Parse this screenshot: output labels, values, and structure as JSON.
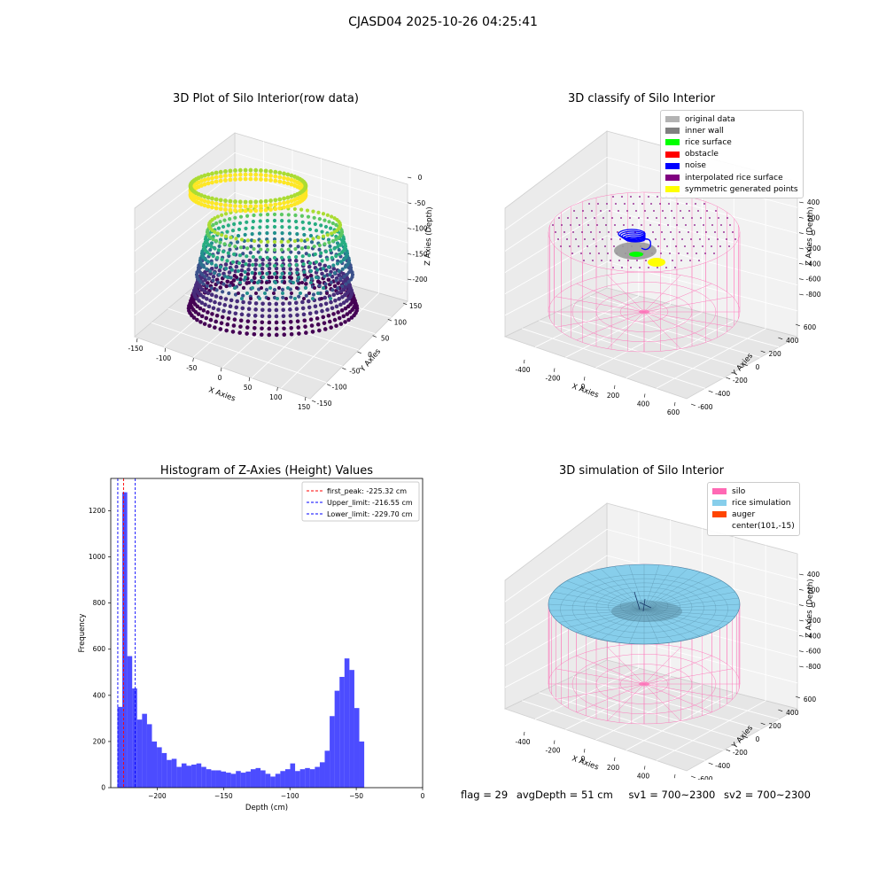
{
  "suptitle": "CJASD04 2025-10-26 04:25:41",
  "panels": {
    "raw": {
      "title": "3D Plot of Silo Interior(row data)",
      "xlabel": "X Axies",
      "ylabel": "Y Axies",
      "zlabel": "Z Axies (Depth)",
      "xticks": [
        "-150",
        "-100",
        "-50",
        "0",
        "50",
        "100",
        "150"
      ],
      "yticks": [
        "-150",
        "-100",
        "-50",
        "0",
        "50",
        "100",
        "150"
      ],
      "zticks": [
        "0",
        "-50",
        "-100",
        "-150",
        "-200"
      ]
    },
    "classify": {
      "title": "3D classify of Silo Interior",
      "xlabel": "X Axies",
      "ylabel": "Y Axies",
      "zlabel": "Z Axies (Depth)",
      "xticks": [
        "-400",
        "-200",
        "0",
        "200",
        "400",
        "600"
      ],
      "yticks": [
        "-600",
        "-400",
        "-200",
        "0",
        "200",
        "400",
        "600"
      ],
      "zticks": [
        "400",
        "200",
        "0",
        "-200",
        "-400",
        "-600",
        "-800"
      ],
      "legend": [
        {
          "label": "original data",
          "color": "#b3b3b3"
        },
        {
          "label": "inner wall",
          "color": "#808080"
        },
        {
          "label": "rice surface",
          "color": "#00ff00"
        },
        {
          "label": "obstacle",
          "color": "#ff0000"
        },
        {
          "label": "noise",
          "color": "#0000ff"
        },
        {
          "label": "interpolated rice surface",
          "color": "#800080"
        },
        {
          "label": "symmetric generated points",
          "color": "#ffff00"
        }
      ]
    },
    "simulation": {
      "title": "3D simulation of Silo Interior",
      "xlabel": "X Axies",
      "ylabel": "Y Axies",
      "zlabel": "Z Axies (Depth)",
      "xticks": [
        "-400",
        "-200",
        "0",
        "200",
        "400",
        "600"
      ],
      "yticks": [
        "-600",
        "-400",
        "-200",
        "0",
        "200",
        "400",
        "600"
      ],
      "zticks": [
        "400",
        "200",
        "0",
        "-200",
        "-400",
        "-600",
        "-800"
      ],
      "legend": [
        {
          "label": "silo",
          "color": "#ff69b4"
        },
        {
          "label": "rice simulation",
          "color": "#87ceeb"
        },
        {
          "label": "auger",
          "color": "#ff4500"
        },
        {
          "label": "center(101,-15)",
          "color": ""
        }
      ]
    }
  },
  "chart_data": {
    "type": "bar",
    "title": "Histogram of Z-Axies (Height) Values",
    "xlabel": "Depth (cm)",
    "ylabel": "Frequency",
    "xlim": [
      -235,
      0
    ],
    "ylim": [
      0,
      1340
    ],
    "xticks": [
      -200,
      -150,
      -100,
      -50,
      0
    ],
    "yticks": [
      0,
      200,
      400,
      600,
      800,
      1000,
      1200
    ],
    "bar_color": "#0000ff",
    "bin_start": -230,
    "bin_width": 3.72,
    "values": [
      350,
      1280,
      570,
      430,
      295,
      320,
      275,
      200,
      175,
      150,
      120,
      125,
      90,
      105,
      95,
      100,
      105,
      90,
      80,
      75,
      75,
      70,
      65,
      60,
      72,
      65,
      70,
      80,
      85,
      75,
      60,
      48,
      60,
      72,
      80,
      105,
      72,
      80,
      85,
      80,
      90,
      110,
      160,
      310,
      420,
      480,
      560,
      510,
      345,
      200
    ],
    "vlines": [
      {
        "label": "first_peak: -225.32 cm",
        "x": -225.32,
        "color": "#ff0000"
      },
      {
        "label": "Upper_limit: -216.55 cm",
        "x": -216.55,
        "color": "#0000ff"
      },
      {
        "label": "Lower_limit: -229.70 cm",
        "x": -229.7,
        "color": "#0000ff"
      }
    ],
    "legend_position": "upper right"
  },
  "footer": {
    "flag": "flag = 29",
    "avg_depth": "avgDepth = 51 cm",
    "sv1": "sv1 = 700~2300",
    "sv2": "sv2 = 700~2300"
  }
}
